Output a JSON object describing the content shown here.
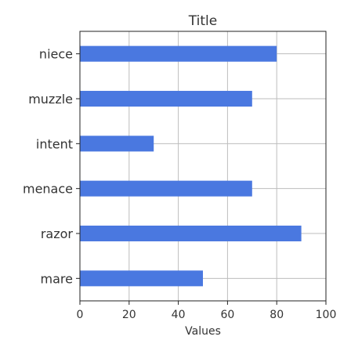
{
  "chart_data": {
    "type": "bar",
    "orientation": "horizontal",
    "title": "Title",
    "xlabel": "Values",
    "ylabel": "",
    "categories": [
      "mare",
      "razor",
      "menace",
      "intent",
      "muzzle",
      "niece"
    ],
    "values": [
      50,
      90,
      70,
      30,
      70,
      80
    ],
    "xlim": [
      0,
      100
    ],
    "xticks": [
      "0",
      "20",
      "40",
      "60",
      "80",
      "100"
    ],
    "grid": true,
    "bar_color": "#4a78e0"
  }
}
